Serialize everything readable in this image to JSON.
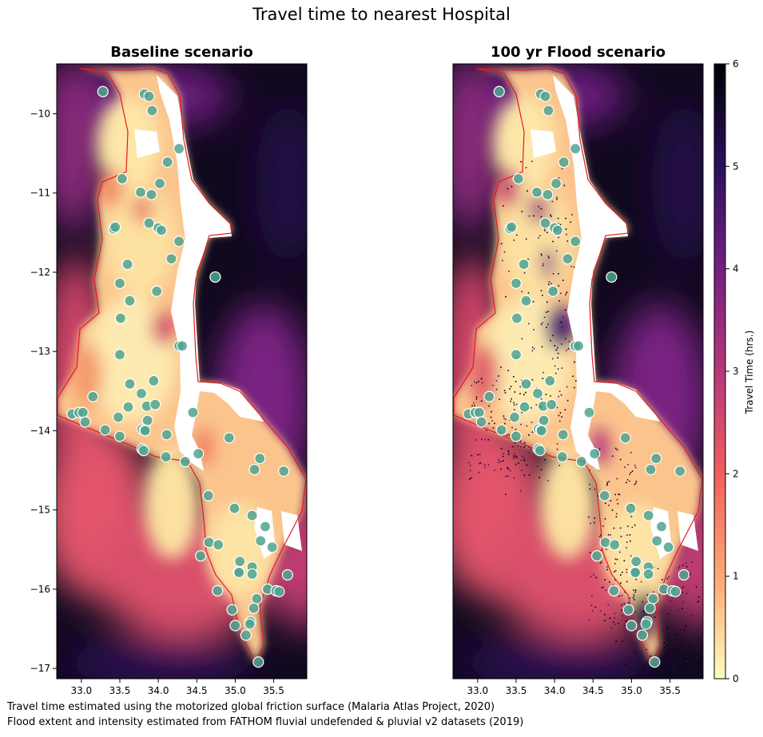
{
  "figure": {
    "title": "Travel time to nearest Hospital",
    "captions": [
      "Travel time estimated using the motorized global friction surface (Malaria Atlas Project, 2020)",
      "Flood extent and intensity estimated from FATHOM fluvial undefended & pluvial v2 datasets (2019)"
    ]
  },
  "panels": [
    {
      "title": "Baseline scenario",
      "scenario": "baseline"
    },
    {
      "title": "100 yr Flood scenario",
      "scenario": "flood"
    }
  ],
  "axes": {
    "x_ticks": [
      33.0,
      33.5,
      34.0,
      34.5,
      35.0,
      35.5
    ],
    "x_tick_labels": [
      "33.0",
      "33.5",
      "34.0",
      "34.5",
      "35.0",
      "35.5"
    ],
    "x_range": [
      32.68,
      35.93
    ],
    "y_ticks": [
      -10,
      -11,
      -12,
      -13,
      -14,
      -15,
      -16,
      -17
    ],
    "y_tick_labels": [
      "−10",
      "−11",
      "−12",
      "−13",
      "−14",
      "−15",
      "−16",
      "−17"
    ],
    "y_range": [
      -17.13,
      -9.37
    ]
  },
  "colorbar": {
    "label": "Travel Time (hrs.)",
    "ticks": [
      0,
      1,
      2,
      3,
      4,
      5,
      6
    ],
    "tick_labels": [
      "0",
      "1",
      "2",
      "3",
      "4",
      "5",
      "6"
    ],
    "range": [
      0,
      6
    ],
    "colormap": "magma_r",
    "stops": [
      "#fcfdbf",
      "#feb078",
      "#f1605d",
      "#b73779",
      "#721f81",
      "#2c115f",
      "#000004"
    ]
  },
  "colors": {
    "boundary": "#e31a1c",
    "lake": "#ffffff",
    "hospital_marker": "#4fa490",
    "hospital_marker_edge": "#ffffff"
  },
  "hospitals": [
    {
      "lon": 33.28,
      "lat": -9.72
    },
    {
      "lon": 33.82,
      "lat": -9.75
    },
    {
      "lon": 33.88,
      "lat": -9.78
    },
    {
      "lon": 33.92,
      "lat": -9.96
    },
    {
      "lon": 34.27,
      "lat": -10.44
    },
    {
      "lon": 34.12,
      "lat": -10.61
    },
    {
      "lon": 33.53,
      "lat": -10.82
    },
    {
      "lon": 33.77,
      "lat": -10.99
    },
    {
      "lon": 33.91,
      "lat": -11.02
    },
    {
      "lon": 34.02,
      "lat": -10.88
    },
    {
      "lon": 33.42,
      "lat": -11.45
    },
    {
      "lon": 33.44,
      "lat": -11.43
    },
    {
      "lon": 33.88,
      "lat": -11.38
    },
    {
      "lon": 34.0,
      "lat": -11.44
    },
    {
      "lon": 34.04,
      "lat": -11.47
    },
    {
      "lon": 34.27,
      "lat": -11.61
    },
    {
      "lon": 34.17,
      "lat": -11.83
    },
    {
      "lon": 33.6,
      "lat": -11.9
    },
    {
      "lon": 33.5,
      "lat": -12.14
    },
    {
      "lon": 33.98,
      "lat": -12.24
    },
    {
      "lon": 33.63,
      "lat": -12.36
    },
    {
      "lon": 34.74,
      "lat": -12.06
    },
    {
      "lon": 33.51,
      "lat": -12.58
    },
    {
      "lon": 34.27,
      "lat": -12.93
    },
    {
      "lon": 34.31,
      "lat": -12.93
    },
    {
      "lon": 33.5,
      "lat": -13.04
    },
    {
      "lon": 33.63,
      "lat": -13.41
    },
    {
      "lon": 33.94,
      "lat": -13.37
    },
    {
      "lon": 33.78,
      "lat": -13.53
    },
    {
      "lon": 33.85,
      "lat": -13.69
    },
    {
      "lon": 33.96,
      "lat": -13.67
    },
    {
      "lon": 33.15,
      "lat": -13.57
    },
    {
      "lon": 32.88,
      "lat": -13.79
    },
    {
      "lon": 32.97,
      "lat": -13.77
    },
    {
      "lon": 33.02,
      "lat": -13.77
    },
    {
      "lon": 33.05,
      "lat": -13.89
    },
    {
      "lon": 33.48,
      "lat": -13.83
    },
    {
      "lon": 33.61,
      "lat": -13.7
    },
    {
      "lon": 33.86,
      "lat": -13.87
    },
    {
      "lon": 34.45,
      "lat": -13.77
    },
    {
      "lon": 33.31,
      "lat": -13.99
    },
    {
      "lon": 33.5,
      "lat": -14.07
    },
    {
      "lon": 33.79,
      "lat": -13.98
    },
    {
      "lon": 33.82,
      "lat": -13.99
    },
    {
      "lon": 33.83,
      "lat": -14.0
    },
    {
      "lon": 34.11,
      "lat": -14.05
    },
    {
      "lon": 33.79,
      "lat": -14.23
    },
    {
      "lon": 33.81,
      "lat": -14.25
    },
    {
      "lon": 34.1,
      "lat": -14.33
    },
    {
      "lon": 34.35,
      "lat": -14.39
    },
    {
      "lon": 34.52,
      "lat": -14.29
    },
    {
      "lon": 34.92,
      "lat": -14.09
    },
    {
      "lon": 35.32,
      "lat": -14.35
    },
    {
      "lon": 35.25,
      "lat": -14.49
    },
    {
      "lon": 35.63,
      "lat": -14.51
    },
    {
      "lon": 34.65,
      "lat": -14.82
    },
    {
      "lon": 34.99,
      "lat": -14.98
    },
    {
      "lon": 35.22,
      "lat": -15.07
    },
    {
      "lon": 35.39,
      "lat": -15.21
    },
    {
      "lon": 35.33,
      "lat": -15.39
    },
    {
      "lon": 35.48,
      "lat": -15.47
    },
    {
      "lon": 34.66,
      "lat": -15.41
    },
    {
      "lon": 34.78,
      "lat": -15.44
    },
    {
      "lon": 34.55,
      "lat": -15.58
    },
    {
      "lon": 35.06,
      "lat": -15.65
    },
    {
      "lon": 35.22,
      "lat": -15.72
    },
    {
      "lon": 35.04,
      "lat": -15.78
    },
    {
      "lon": 35.05,
      "lat": -15.79
    },
    {
      "lon": 35.22,
      "lat": -15.81
    },
    {
      "lon": 35.68,
      "lat": -15.82
    },
    {
      "lon": 34.77,
      "lat": -16.02
    },
    {
      "lon": 35.42,
      "lat": -16.0
    },
    {
      "lon": 35.53,
      "lat": -16.02
    },
    {
      "lon": 35.57,
      "lat": -16.03
    },
    {
      "lon": 35.28,
      "lat": -16.12
    },
    {
      "lon": 35.24,
      "lat": -16.24
    },
    {
      "lon": 34.96,
      "lat": -16.26
    },
    {
      "lon": 35.2,
      "lat": -16.41
    },
    {
      "lon": 35.19,
      "lat": -16.44
    },
    {
      "lon": 35.0,
      "lat": -16.46
    },
    {
      "lon": 35.14,
      "lat": -16.58
    },
    {
      "lon": 35.3,
      "lat": -16.92
    }
  ]
}
